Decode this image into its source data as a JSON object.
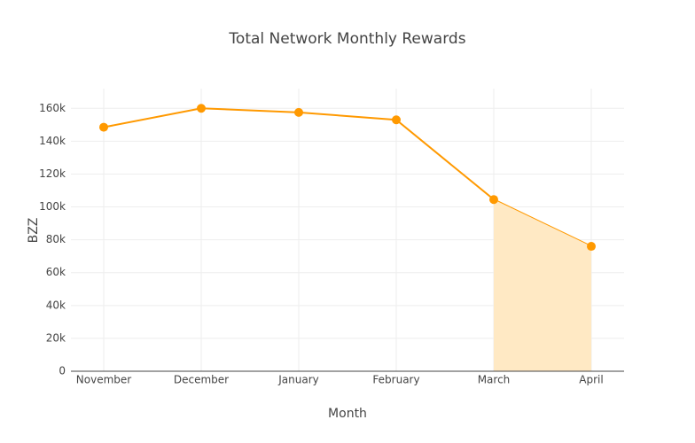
{
  "chart_data": {
    "type": "line",
    "title": "Total Network Monthly Rewards",
    "x_label": "Month",
    "y_label": "BZZ",
    "categories": [
      "November",
      "December",
      "January",
      "February",
      "March",
      "April"
    ],
    "series": [
      {
        "color": "#ff9900",
        "values": [
          148500,
          160000,
          157500,
          153000,
          104500,
          76000
        ]
      },
      {
        "color": "#ffe9c4",
        "fill": true,
        "values": [
          null,
          null,
          null,
          null,
          104500,
          76000
        ]
      }
    ],
    "ylim": [
      0,
      172000
    ],
    "yticks": [
      0,
      {
        "value": 20000,
        "label": "20k"
      },
      {
        "value": 40000,
        "label": "40k"
      },
      {
        "value": 60000,
        "label": "60k"
      },
      {
        "value": 80000,
        "label": "80k"
      },
      {
        "value": 100000,
        "label": "100k"
      },
      {
        "value": 120000,
        "label": "120k"
      },
      {
        "value": 140000,
        "label": "140k"
      },
      {
        "value": 160000,
        "label": "160k"
      }
    ],
    "grid": true
  }
}
